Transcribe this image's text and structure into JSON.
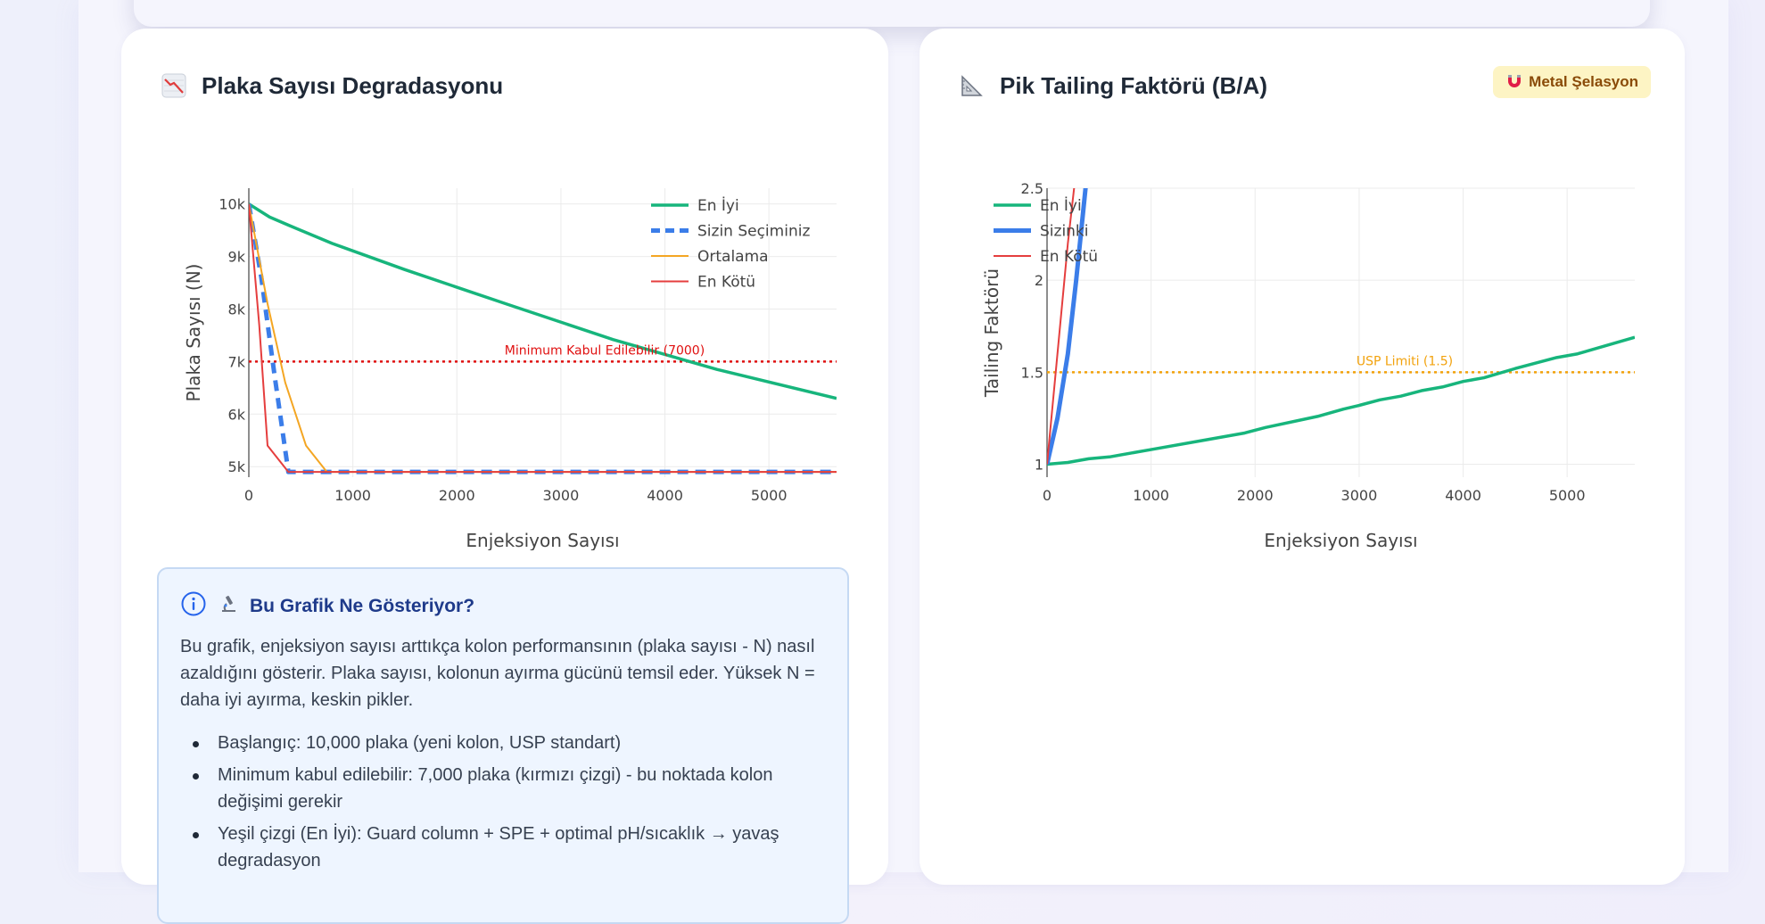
{
  "left_card": {
    "title": "Plaka Sayısı Degradasyonu",
    "icon": "chart-decreasing-icon"
  },
  "right_card": {
    "title": "Pik Tailing Faktörü (B/A)",
    "icon": "triangle-ruler-icon",
    "badge": "Metal Şelasyon",
    "badge_icon": "magnet-icon"
  },
  "info": {
    "title": "Bu Grafik Ne Gösteriyor?",
    "icons": [
      "info-icon",
      "microscope-icon"
    ],
    "text": "Bu grafik, enjeksiyon sayısı arttıkça kolon performansının (plaka sayısı - N) nasıl azaldığını gösterir. Plaka sayısı, kolonun ayırma gücünü temsil eder. Yüksek N = daha iyi ayırma, keskin pikler.",
    "bullets": [
      "Başlangıç: 10,000 plaka (yeni kolon, USP standart)",
      "Minimum kabul edilebilir: 7,000 plaka (kırmızı çizgi) - bu noktada kolon değişimi gerekir",
      "Yeşil çizgi (En İyi): Guard column + SPE + optimal pH/sıcaklık → yavaş degradasyon"
    ]
  },
  "chart_data": [
    {
      "type": "line",
      "title": "",
      "xlabel": "Enjeksiyon Sayısı",
      "ylabel": "Plaka Sayısı (N)",
      "xlim": [
        0,
        5650
      ],
      "ylim": [
        4800,
        10300
      ],
      "x_ticks": [
        0,
        1000,
        2000,
        3000,
        4000,
        5000
      ],
      "y_ticks": [
        5000,
        6000,
        7000,
        8000,
        9000,
        10000
      ],
      "y_tick_labels": [
        "5k",
        "6k",
        "7k",
        "8k",
        "9k",
        "10k"
      ],
      "grid": true,
      "legend_position": "top-right",
      "series": [
        {
          "name": "En İyi",
          "color": "#17b57c",
          "width": 3.5,
          "dash": "solid",
          "x": [
            0,
            200,
            400,
            800,
            1500,
            2500,
            3500,
            4500,
            5650
          ],
          "y": [
            10000,
            9750,
            9580,
            9250,
            8750,
            8080,
            7420,
            6850,
            6300
          ]
        },
        {
          "name": "Sizin Seçiminiz",
          "color": "#3b7de9",
          "width": 5,
          "dash": "dashed",
          "x": [
            0,
            120,
            250,
            380,
            5650
          ],
          "y": [
            10000,
            8600,
            6700,
            4900,
            4900
          ]
        },
        {
          "name": "Ortalama",
          "color": "#f4a623",
          "width": 2,
          "dash": "solid",
          "x": [
            0,
            180,
            350,
            550,
            750,
            5650
          ],
          "y": [
            10000,
            8100,
            6600,
            5400,
            4900,
            4900
          ]
        },
        {
          "name": "En Kötü",
          "color": "#e53e3e",
          "width": 2,
          "dash": "solid",
          "x": [
            0,
            100,
            180,
            380,
            5650
          ],
          "y": [
            10000,
            7700,
            5400,
            4900,
            4900
          ]
        }
      ],
      "reference_line": {
        "y": 7000,
        "label": "Minimum Kabul Edilebilir (7000)",
        "color": "#e01010"
      }
    },
    {
      "type": "line",
      "title": "",
      "xlabel": "Enjeksiyon Sayısı",
      "ylabel": "Tailing Faktörü",
      "xlim": [
        0,
        5650
      ],
      "ylim": [
        0.93,
        2.5
      ],
      "x_ticks": [
        0,
        1000,
        2000,
        3000,
        4000,
        5000
      ],
      "y_ticks": [
        1,
        1.5,
        2,
        2.5
      ],
      "y_tick_labels": [
        "1",
        "1.5",
        "2",
        "2.5"
      ],
      "grid": true,
      "legend_position": "top-left",
      "series": [
        {
          "name": "En İyi",
          "color": "#17b57c",
          "width": 3.5,
          "dash": "solid",
          "x": [
            0,
            200,
            400,
            600,
            1000,
            1500,
            1900,
            2100,
            2600,
            2850,
            3000,
            3200,
            3400,
            3600,
            3800,
            4000,
            4200,
            4500,
            4900,
            5100,
            5650
          ],
          "y": [
            1.0,
            1.01,
            1.03,
            1.04,
            1.08,
            1.13,
            1.17,
            1.2,
            1.26,
            1.3,
            1.32,
            1.35,
            1.37,
            1.4,
            1.42,
            1.45,
            1.47,
            1.52,
            1.58,
            1.6,
            1.69
          ]
        },
        {
          "name": "Sizinki",
          "color": "#3b7de9",
          "width": 5,
          "dash": "solid",
          "x": [
            0,
            100,
            200,
            280,
            370,
            420
          ],
          "y": [
            1.0,
            1.25,
            1.6,
            2.0,
            2.5,
            2.7
          ]
        },
        {
          "name": "En Kötü",
          "color": "#e53e3e",
          "width": 2,
          "dash": "solid",
          "x": [
            0,
            100,
            200,
            260,
            300
          ],
          "y": [
            1.0,
            1.6,
            2.2,
            2.5,
            2.7
          ]
        }
      ],
      "reference_line": {
        "y": 1.5,
        "label": "USP Limiti (1.5)",
        "color": "#f2a20d"
      }
    }
  ]
}
